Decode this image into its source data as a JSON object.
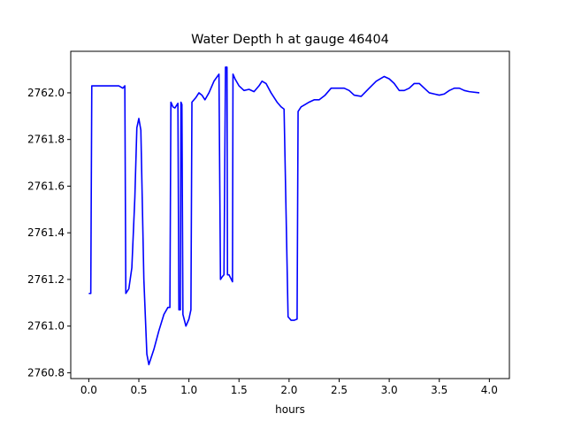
{
  "chart_data": {
    "type": "line",
    "title": "Water Depth h at gauge 46404",
    "xlabel": "hours",
    "ylabel": "",
    "xlim": [
      -0.18,
      4.2
    ],
    "ylim": [
      2760.775,
      2762.178
    ],
    "xticks": [
      0.0,
      0.5,
      1.0,
      1.5,
      2.0,
      2.5,
      3.0,
      3.5,
      4.0
    ],
    "xtick_labels": [
      "0.0",
      "0.5",
      "1.0",
      "1.5",
      "2.0",
      "2.5",
      "3.0",
      "3.5",
      "4.0"
    ],
    "yticks": [
      2760.8,
      2761.0,
      2761.2,
      2761.4,
      2761.6,
      2761.8,
      2762.0
    ],
    "ytick_labels": [
      "2760.8",
      "2761.0",
      "2761.2",
      "2761.4",
      "2761.6",
      "2761.8",
      "2762.0"
    ],
    "grid": false,
    "legend": "none",
    "series": [
      {
        "color": "#0000ff",
        "points": [
          [
            0.0,
            2761.14
          ],
          [
            0.02,
            2761.14
          ],
          [
            0.03,
            2762.03
          ],
          [
            0.1,
            2762.03
          ],
          [
            0.2,
            2762.03
          ],
          [
            0.3,
            2762.03
          ],
          [
            0.34,
            2762.02
          ],
          [
            0.36,
            2762.03
          ],
          [
            0.37,
            2761.14
          ],
          [
            0.4,
            2761.16
          ],
          [
            0.43,
            2761.25
          ],
          [
            0.46,
            2761.55
          ],
          [
            0.48,
            2761.85
          ],
          [
            0.5,
            2761.89
          ],
          [
            0.52,
            2761.84
          ],
          [
            0.55,
            2761.2
          ],
          [
            0.58,
            2760.88
          ],
          [
            0.6,
            2760.835
          ],
          [
            0.65,
            2760.9
          ],
          [
            0.7,
            2760.98
          ],
          [
            0.75,
            2761.05
          ],
          [
            0.79,
            2761.08
          ],
          [
            0.81,
            2761.08
          ],
          [
            0.82,
            2761.96
          ],
          [
            0.84,
            2761.94
          ],
          [
            0.86,
            2761.935
          ],
          [
            0.89,
            2761.955
          ],
          [
            0.9,
            2761.07
          ],
          [
            0.915,
            2761.07
          ],
          [
            0.92,
            2761.96
          ],
          [
            0.93,
            2761.95
          ],
          [
            0.94,
            2761.05
          ],
          [
            0.97,
            2761.0
          ],
          [
            1.0,
            2761.03
          ],
          [
            1.02,
            2761.07
          ],
          [
            1.03,
            2761.96
          ],
          [
            1.07,
            2761.98
          ],
          [
            1.1,
            2762.0
          ],
          [
            1.13,
            2761.99
          ],
          [
            1.16,
            2761.97
          ],
          [
            1.2,
            2762.0
          ],
          [
            1.25,
            2762.05
          ],
          [
            1.3,
            2762.08
          ],
          [
            1.315,
            2761.2
          ],
          [
            1.33,
            2761.21
          ],
          [
            1.35,
            2761.22
          ],
          [
            1.365,
            2762.11
          ],
          [
            1.38,
            2762.11
          ],
          [
            1.385,
            2761.22
          ],
          [
            1.4,
            2761.22
          ],
          [
            1.435,
            2761.19
          ],
          [
            1.44,
            2762.08
          ],
          [
            1.46,
            2762.06
          ],
          [
            1.5,
            2762.03
          ],
          [
            1.55,
            2762.01
          ],
          [
            1.6,
            2762.015
          ],
          [
            1.65,
            2762.005
          ],
          [
            1.7,
            2762.03
          ],
          [
            1.73,
            2762.05
          ],
          [
            1.77,
            2762.04
          ],
          [
            1.82,
            2762.0
          ],
          [
            1.88,
            2761.96
          ],
          [
            1.92,
            2761.94
          ],
          [
            1.95,
            2761.93
          ],
          [
            1.99,
            2761.04
          ],
          [
            2.02,
            2761.025
          ],
          [
            2.05,
            2761.025
          ],
          [
            2.08,
            2761.03
          ],
          [
            2.09,
            2761.92
          ],
          [
            2.12,
            2761.94
          ],
          [
            2.16,
            2761.95
          ],
          [
            2.2,
            2761.96
          ],
          [
            2.25,
            2761.97
          ],
          [
            2.3,
            2761.97
          ],
          [
            2.36,
            2761.99
          ],
          [
            2.42,
            2762.02
          ],
          [
            2.48,
            2762.02
          ],
          [
            2.55,
            2762.02
          ],
          [
            2.6,
            2762.01
          ],
          [
            2.65,
            2761.99
          ],
          [
            2.72,
            2761.985
          ],
          [
            2.8,
            2762.02
          ],
          [
            2.87,
            2762.05
          ],
          [
            2.95,
            2762.07
          ],
          [
            3.0,
            2762.06
          ],
          [
            3.05,
            2762.04
          ],
          [
            3.1,
            2762.01
          ],
          [
            3.15,
            2762.01
          ],
          [
            3.2,
            2762.02
          ],
          [
            3.25,
            2762.04
          ],
          [
            3.3,
            2762.04
          ],
          [
            3.35,
            2762.02
          ],
          [
            3.4,
            2762.0
          ],
          [
            3.45,
            2761.995
          ],
          [
            3.5,
            2761.99
          ],
          [
            3.55,
            2761.995
          ],
          [
            3.6,
            2762.01
          ],
          [
            3.65,
            2762.02
          ],
          [
            3.7,
            2762.02
          ],
          [
            3.75,
            2762.01
          ],
          [
            3.8,
            2762.005
          ],
          [
            3.9,
            2762.0
          ]
        ]
      }
    ]
  }
}
